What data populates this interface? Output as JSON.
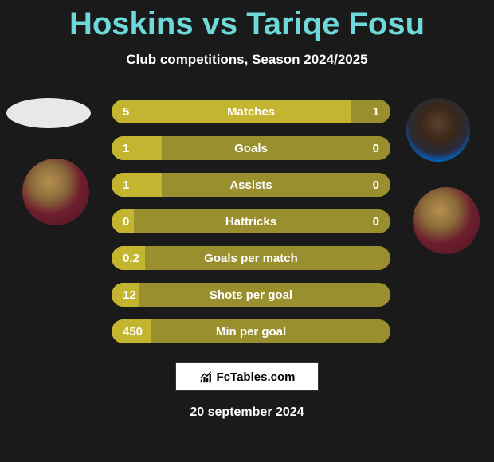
{
  "title": "Hoskins vs Tariqe Fosu",
  "subtitle": "Club competitions, Season 2024/2025",
  "date": "20 september 2024",
  "brand_text": "FcTables.com",
  "colors": {
    "title": "#6fd9d9",
    "bar_bg": "#998f2e",
    "bar_fill": "#c4b530",
    "page_bg": "#1a1a1a"
  },
  "bars": [
    {
      "label": "Matches",
      "left": "5",
      "right": "1",
      "fill_pct": 86
    },
    {
      "label": "Goals",
      "left": "1",
      "right": "0",
      "fill_pct": 18
    },
    {
      "label": "Assists",
      "left": "1",
      "right": "0",
      "fill_pct": 18
    },
    {
      "label": "Hattricks",
      "left": "0",
      "right": "0",
      "fill_pct": 8
    },
    {
      "label": "Goals per match",
      "left": "0.2",
      "right": "",
      "fill_pct": 12
    },
    {
      "label": "Shots per goal",
      "left": "12",
      "right": "",
      "fill_pct": 10
    },
    {
      "label": "Min per goal",
      "left": "450",
      "right": "",
      "fill_pct": 14
    }
  ]
}
